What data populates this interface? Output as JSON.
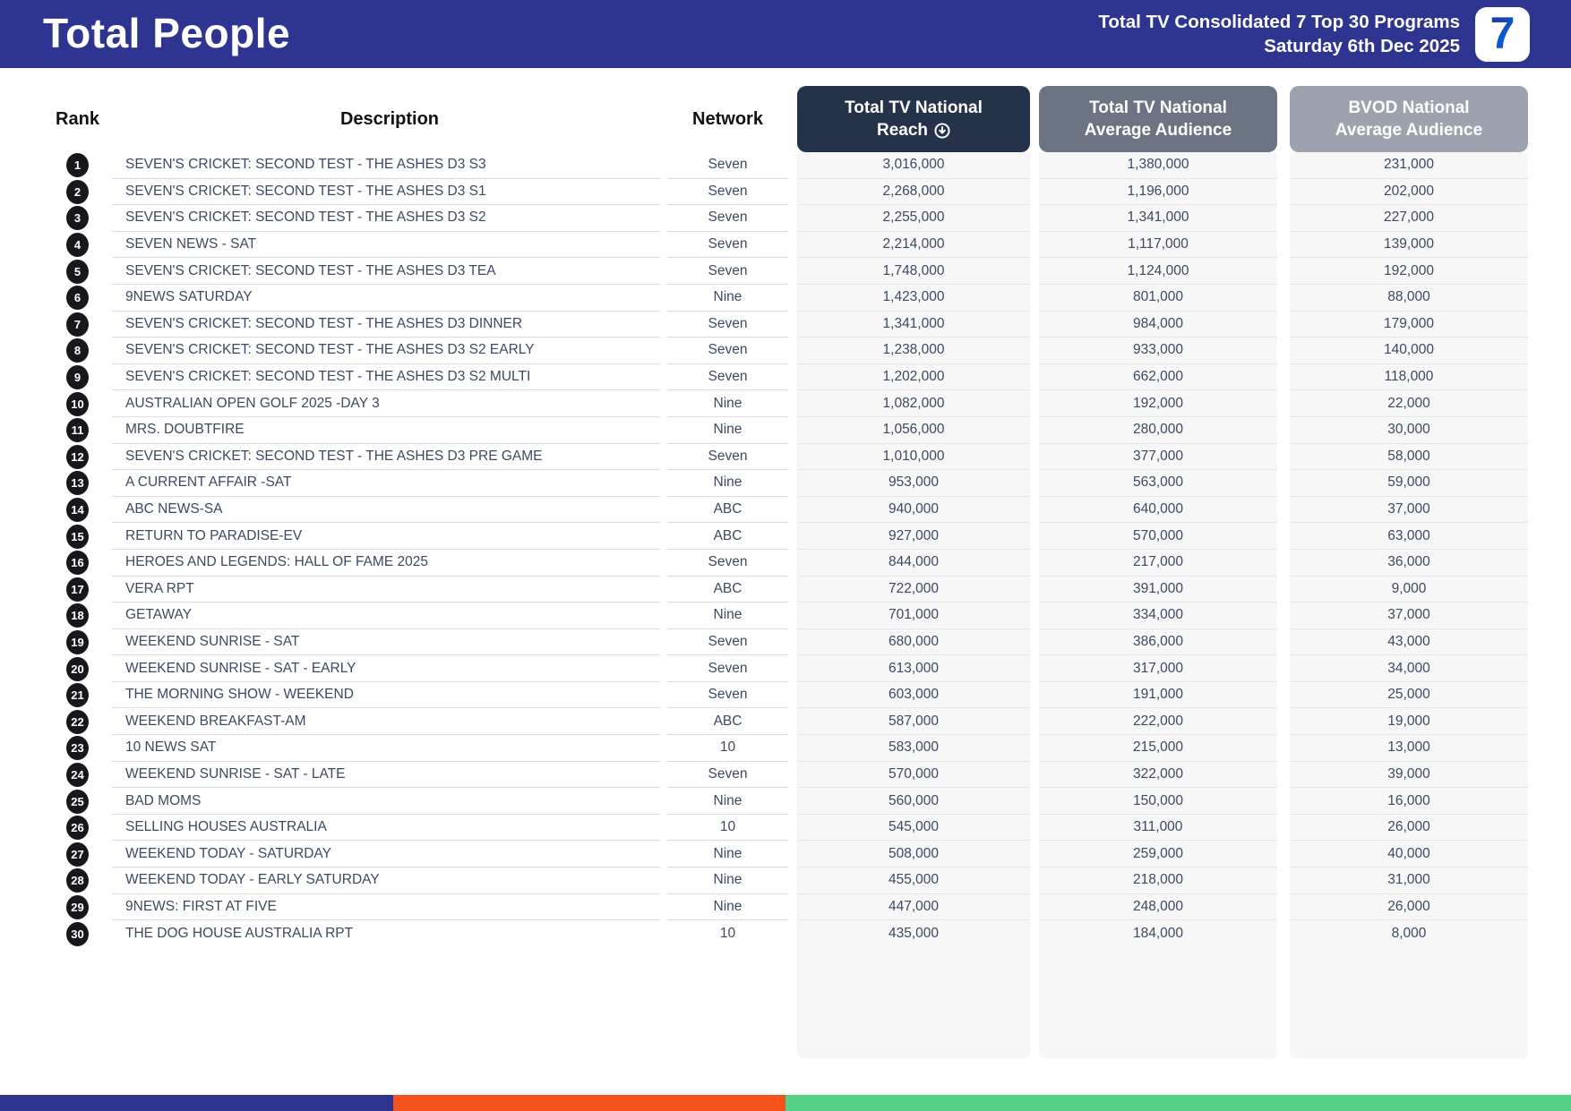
{
  "header": {
    "title": "Total People",
    "subtitle_line1": "Total TV Consolidated 7 Top 30 Programs",
    "subtitle_line2": "Saturday 6th Dec 2025",
    "logo_text": "7"
  },
  "table": {
    "columns": {
      "rank": {
        "label": "Rank"
      },
      "description": {
        "label": "Description"
      },
      "network": {
        "label": "Network"
      },
      "reach": {
        "line1": "Total TV National",
        "line2": "Reach",
        "sort_icon": "circle-arrow-down",
        "sort_state": "descending"
      },
      "tv_avg": {
        "line1": "Total TV National",
        "line2": "Average Audience"
      },
      "bvod": {
        "line1": "BVOD National",
        "line2": "Average Audience"
      }
    },
    "rows": [
      {
        "rank": "1",
        "description": "SEVEN'S CRICKET: SECOND TEST - THE ASHES D3 S3",
        "network": "Seven",
        "reach": "3,016,000",
        "tv_avg": "1,380,000",
        "bvod": "231,000"
      },
      {
        "rank": "2",
        "description": "SEVEN'S CRICKET: SECOND TEST - THE ASHES D3 S1",
        "network": "Seven",
        "reach": "2,268,000",
        "tv_avg": "1,196,000",
        "bvod": "202,000"
      },
      {
        "rank": "3",
        "description": "SEVEN'S CRICKET: SECOND TEST - THE ASHES D3 S2",
        "network": "Seven",
        "reach": "2,255,000",
        "tv_avg": "1,341,000",
        "bvod": "227,000"
      },
      {
        "rank": "4",
        "description": "SEVEN NEWS - SAT",
        "network": "Seven",
        "reach": "2,214,000",
        "tv_avg": "1,117,000",
        "bvod": "139,000"
      },
      {
        "rank": "5",
        "description": "SEVEN'S CRICKET: SECOND TEST - THE ASHES D3 TEA",
        "network": "Seven",
        "reach": "1,748,000",
        "tv_avg": "1,124,000",
        "bvod": "192,000"
      },
      {
        "rank": "6",
        "description": "9NEWS SATURDAY",
        "network": "Nine",
        "reach": "1,423,000",
        "tv_avg": "801,000",
        "bvod": "88,000"
      },
      {
        "rank": "7",
        "description": "SEVEN'S CRICKET: SECOND TEST - THE ASHES D3 DINNER",
        "network": "Seven",
        "reach": "1,341,000",
        "tv_avg": "984,000",
        "bvod": "179,000"
      },
      {
        "rank": "8",
        "description": "SEVEN'S CRICKET: SECOND TEST - THE ASHES D3 S2 EARLY",
        "network": "Seven",
        "reach": "1,238,000",
        "tv_avg": "933,000",
        "bvod": "140,000"
      },
      {
        "rank": "9",
        "description": "SEVEN'S CRICKET: SECOND TEST - THE ASHES D3 S2 MULTI",
        "network": "Seven",
        "reach": "1,202,000",
        "tv_avg": "662,000",
        "bvod": "118,000"
      },
      {
        "rank": "10",
        "description": "AUSTRALIAN OPEN GOLF 2025 -DAY 3",
        "network": "Nine",
        "reach": "1,082,000",
        "tv_avg": "192,000",
        "bvod": "22,000"
      },
      {
        "rank": "11",
        "description": "MRS. DOUBTFIRE",
        "network": "Nine",
        "reach": "1,056,000",
        "tv_avg": "280,000",
        "bvod": "30,000"
      },
      {
        "rank": "12",
        "description": "SEVEN'S CRICKET: SECOND TEST - THE ASHES D3 PRE GAME",
        "network": "Seven",
        "reach": "1,010,000",
        "tv_avg": "377,000",
        "bvod": "58,000"
      },
      {
        "rank": "13",
        "description": "A CURRENT AFFAIR -SAT",
        "network": "Nine",
        "reach": "953,000",
        "tv_avg": "563,000",
        "bvod": "59,000"
      },
      {
        "rank": "14",
        "description": "ABC NEWS-SA",
        "network": "ABC",
        "reach": "940,000",
        "tv_avg": "640,000",
        "bvod": "37,000"
      },
      {
        "rank": "15",
        "description": "RETURN TO PARADISE-EV",
        "network": "ABC",
        "reach": "927,000",
        "tv_avg": "570,000",
        "bvod": "63,000"
      },
      {
        "rank": "16",
        "description": "HEROES AND LEGENDS: HALL OF FAME 2025",
        "network": "Seven",
        "reach": "844,000",
        "tv_avg": "217,000",
        "bvod": "36,000"
      },
      {
        "rank": "17",
        "description": "VERA RPT",
        "network": "ABC",
        "reach": "722,000",
        "tv_avg": "391,000",
        "bvod": "9,000"
      },
      {
        "rank": "18",
        "description": "GETAWAY",
        "network": "Nine",
        "reach": "701,000",
        "tv_avg": "334,000",
        "bvod": "37,000"
      },
      {
        "rank": "19",
        "description": "WEEKEND SUNRISE - SAT",
        "network": "Seven",
        "reach": "680,000",
        "tv_avg": "386,000",
        "bvod": "43,000"
      },
      {
        "rank": "20",
        "description": "WEEKEND SUNRISE - SAT - EARLY",
        "network": "Seven",
        "reach": "613,000",
        "tv_avg": "317,000",
        "bvod": "34,000"
      },
      {
        "rank": "21",
        "description": "THE MORNING SHOW - WEEKEND",
        "network": "Seven",
        "reach": "603,000",
        "tv_avg": "191,000",
        "bvod": "25,000"
      },
      {
        "rank": "22",
        "description": "WEEKEND BREAKFAST-AM",
        "network": "ABC",
        "reach": "587,000",
        "tv_avg": "222,000",
        "bvod": "19,000"
      },
      {
        "rank": "23",
        "description": "10 NEWS SAT",
        "network": "10",
        "reach": "583,000",
        "tv_avg": "215,000",
        "bvod": "13,000"
      },
      {
        "rank": "24",
        "description": "WEEKEND SUNRISE - SAT - LATE",
        "network": "Seven",
        "reach": "570,000",
        "tv_avg": "322,000",
        "bvod": "39,000"
      },
      {
        "rank": "25",
        "description": "BAD MOMS",
        "network": "Nine",
        "reach": "560,000",
        "tv_avg": "150,000",
        "bvod": "16,000"
      },
      {
        "rank": "26",
        "description": "SELLING HOUSES AUSTRALIA",
        "network": "10",
        "reach": "545,000",
        "tv_avg": "311,000",
        "bvod": "26,000"
      },
      {
        "rank": "27",
        "description": "WEEKEND TODAY - SATURDAY",
        "network": "Nine",
        "reach": "508,000",
        "tv_avg": "259,000",
        "bvod": "40,000"
      },
      {
        "rank": "28",
        "description": "WEEKEND TODAY - EARLY SATURDAY",
        "network": "Nine",
        "reach": "455,000",
        "tv_avg": "218,000",
        "bvod": "31,000"
      },
      {
        "rank": "29",
        "description": "9NEWS: FIRST AT FIVE",
        "network": "Nine",
        "reach": "447,000",
        "tv_avg": "248,000",
        "bvod": "26,000"
      },
      {
        "rank": "30",
        "description": "THE DOG HOUSE AUSTRALIA RPT",
        "network": "10",
        "reach": "435,000",
        "tv_avg": "184,000",
        "bvod": "8,000"
      }
    ]
  },
  "colors": {
    "header_blue": "#2D3590",
    "pill_dark": "#24324A",
    "pill_mid": "#6C7484",
    "pill_light": "#9CA3AF",
    "band_bg": "#F7F7F8",
    "text": "#3C4962"
  },
  "footer": {
    "bar_segments": [
      {
        "color": "#2D3590",
        "width_pct": 25
      },
      {
        "color": "#F4521C",
        "width_pct": 25
      },
      {
        "color": "#53D186",
        "width_pct": 50
      }
    ]
  }
}
